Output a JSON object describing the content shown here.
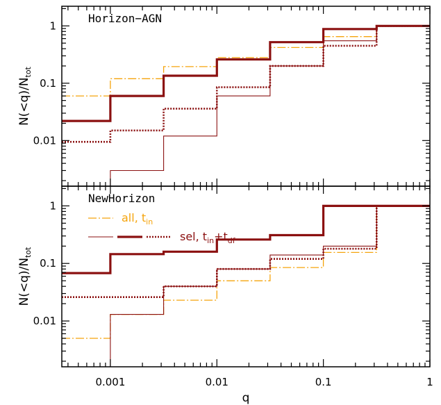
{
  "colors": {
    "orange": "#f5a40c",
    "dark_red": "#8b1010",
    "axis": "#000000"
  },
  "chart_data": [
    {
      "type": "line",
      "step": true,
      "title": "Horizon−AGN",
      "xlabel": "",
      "ylabel": "N(<q)/N",
      "ylabel_sub": "tot",
      "xscale": "log",
      "yscale": "log",
      "xlim": [
        0.00035,
        1
      ],
      "ylim": [
        0.0016,
        2.2
      ],
      "x_ticks": [
        0.001,
        0.01,
        0.1,
        1
      ],
      "x_tick_labels": [
        "",
        "",
        "",
        ""
      ],
      "y_ticks": [
        0.01,
        0.1,
        1
      ],
      "y_tick_labels": [
        "0.01",
        "0.1",
        "1"
      ],
      "bin_edges": [
        0.00035,
        0.001,
        0.00316,
        0.01,
        0.0316,
        0.1,
        0.316,
        1
      ],
      "series": [
        {
          "style": "orange-dashdot",
          "values": [
            0.06,
            0.12,
            0.195,
            0.28,
            0.42,
            0.65,
            1.0
          ]
        },
        {
          "style": "darkred-thin",
          "values": [
            null,
            0.003,
            0.012,
            0.06,
            0.2,
            0.55,
            1.0
          ]
        },
        {
          "style": "darkred-thick",
          "values": [
            0.022,
            0.06,
            0.135,
            0.26,
            0.52,
            0.88,
            1.0
          ]
        },
        {
          "style": "darkred-dotted",
          "values": [
            0.0095,
            0.015,
            0.036,
            0.085,
            0.2,
            0.45,
            1.0
          ]
        }
      ]
    },
    {
      "type": "line",
      "step": true,
      "title": "NewHorizon",
      "xlabel": "q",
      "ylabel": "N(<q)/N",
      "ylabel_sub": "tot",
      "xscale": "log",
      "yscale": "log",
      "xlim": [
        0.00035,
        1
      ],
      "ylim": [
        0.0016,
        2.2
      ],
      "x_ticks": [
        0.001,
        0.01,
        0.1,
        1
      ],
      "x_tick_labels": [
        "0.001",
        "0.01",
        "0.1",
        "1"
      ],
      "y_ticks": [
        0.01,
        0.1,
        1
      ],
      "y_tick_labels": [
        "0.01",
        "0.1",
        "1"
      ],
      "bin_edges": [
        0.00035,
        0.001,
        0.00316,
        0.01,
        0.0316,
        0.1,
        0.316,
        1
      ],
      "series": [
        {
          "style": "orange-dashdot",
          "values": [
            0.005,
            0.013,
            0.023,
            0.05,
            0.085,
            0.155,
            1.0
          ]
        },
        {
          "style": "darkred-thin",
          "values": [
            null,
            0.013,
            0.04,
            0.08,
            0.14,
            0.2,
            1.0
          ]
        },
        {
          "style": "darkred-thick",
          "values": [
            0.068,
            0.145,
            0.16,
            0.26,
            0.31,
            1.0,
            1.0
          ]
        },
        {
          "style": "darkred-dotted",
          "values": [
            0.026,
            0.026,
            0.04,
            0.08,
            0.12,
            0.18,
            1.0
          ]
        }
      ],
      "legend": {
        "placement": "top-left",
        "entries": [
          {
            "label": "all,  t",
            "sub": "in",
            "sub2": "",
            "mid": "",
            "styles": [
              "orange-dashdot"
            ],
            "color": "orange"
          },
          {
            "label": "sel,  t",
            "sub": "in",
            "mid": "+t",
            "sub2": "df",
            "styles": [
              "darkred-thin",
              "darkred-thick",
              "darkred-dotted"
            ],
            "color": "dark_red"
          }
        ]
      }
    }
  ]
}
